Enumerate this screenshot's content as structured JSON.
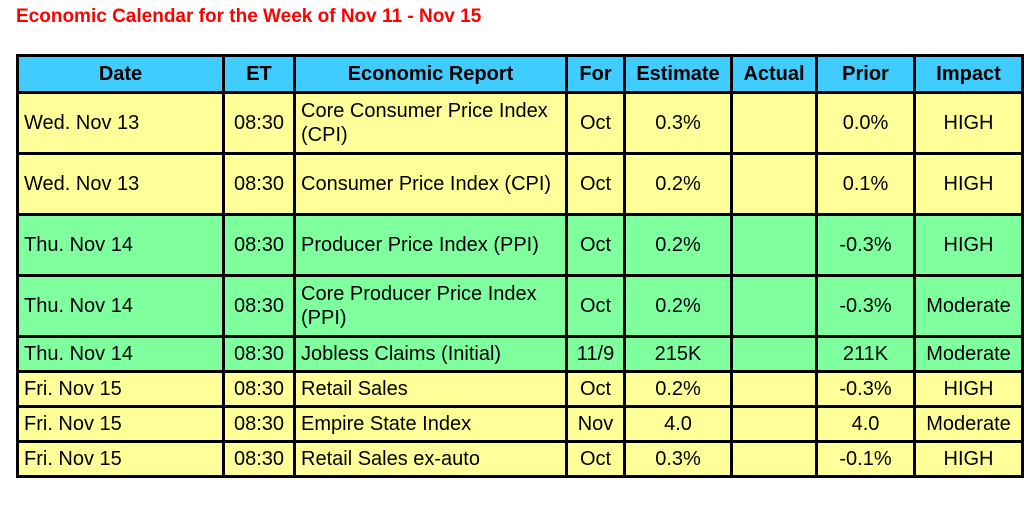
{
  "title": "Economic Calendar for the Week of Nov 11 - Nov 15",
  "colors": {
    "header": "#40ccff",
    "yellow": "#ffff99",
    "green": "#80ff9f",
    "title": "#ff0000"
  },
  "columns": [
    "Date",
    "ET",
    "Economic Report",
    "For",
    "Estimate",
    "Actual",
    "Prior",
    "Impact"
  ],
  "rows": [
    {
      "date": "Wed. Nov 13",
      "et": "08:30",
      "report": "Core Consumer Price Index (CPI)",
      "for": "Oct",
      "estimate": "0.3%",
      "actual": "",
      "prior": "0.0%",
      "impact": "HIGH",
      "color": "yellow"
    },
    {
      "date": "Wed. Nov 13",
      "et": "08:30",
      "report": "Consumer Price Index (CPI)",
      "for": "Oct",
      "estimate": "0.2%",
      "actual": "",
      "prior": "0.1%",
      "impact": "HIGH",
      "color": "yellow"
    },
    {
      "date": "Thu. Nov 14",
      "et": "08:30",
      "report": "Producer Price Index (PPI)",
      "for": "Oct",
      "estimate": "0.2%",
      "actual": "",
      "prior": "-0.3%",
      "impact": "HIGH",
      "color": "green"
    },
    {
      "date": "Thu. Nov 14",
      "et": "08:30",
      "report": "Core Producer Price Index (PPI)",
      "for": "Oct",
      "estimate": "0.2%",
      "actual": "",
      "prior": "-0.3%",
      "impact": "Moderate",
      "color": "green"
    },
    {
      "date": "Thu. Nov 14",
      "et": "08:30",
      "report": "Jobless Claims (Initial)",
      "for": "11/9",
      "estimate": "215K",
      "actual": "",
      "prior": "211K",
      "impact": "Moderate",
      "color": "green"
    },
    {
      "date": "Fri. Nov 15",
      "et": "08:30",
      "report": "Retail Sales",
      "for": "Oct",
      "estimate": "0.2%",
      "actual": "",
      "prior": "-0.3%",
      "impact": "HIGH",
      "color": "yellow"
    },
    {
      "date": "Fri. Nov 15",
      "et": "08:30",
      "report": "Empire State Index",
      "for": "Nov",
      "estimate": "4.0",
      "actual": "",
      "prior": "4.0",
      "impact": "Moderate",
      "color": "yellow"
    },
    {
      "date": "Fri. Nov 15",
      "et": "08:30",
      "report": "Retail Sales ex-auto",
      "for": "Oct",
      "estimate": "0.3%",
      "actual": "",
      "prior": "-0.1%",
      "impact": "HIGH",
      "color": "yellow"
    }
  ]
}
